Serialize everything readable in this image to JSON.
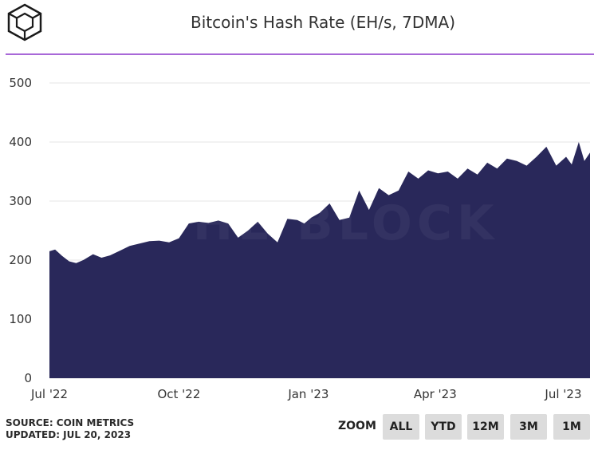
{
  "title": "Bitcoin's Hash Rate (EH/s, 7DMA)",
  "watermark": "THE BLOCK",
  "source": {
    "line1": "SOURCE: COIN METRICS",
    "line2": "UPDATED: JUL 20, 2023"
  },
  "zoom": {
    "label": "ZOOM",
    "buttons": [
      "ALL",
      "YTD",
      "12M",
      "3M",
      "1M"
    ]
  },
  "colors": {
    "area": "#29285a",
    "rule": "#a868d8",
    "gridline": "#e6e6e6",
    "button_bg": "#dcdcdc"
  },
  "chart_data": {
    "type": "area",
    "title": "Bitcoin's Hash Rate (EH/s, 7DMA)",
    "xlabel": "",
    "ylabel": "",
    "ylim": [
      0,
      500
    ],
    "yticks": [
      0,
      100,
      200,
      300,
      400,
      500
    ],
    "xticks": [
      "Jul '22",
      "Oct '22",
      "Jan '23",
      "Apr '23",
      "Jul '23"
    ],
    "x_range": [
      "2022-07-01",
      "2023-07-20"
    ],
    "grid": true,
    "legend": "none",
    "series": [
      {
        "x": [
          "2022-07-01",
          "2022-07-05",
          "2022-07-10",
          "2022-07-15",
          "2022-07-20",
          "2022-07-25",
          "2022-08-01",
          "2022-08-07",
          "2022-08-13",
          "2022-08-20",
          "2022-08-27",
          "2022-09-03",
          "2022-09-10",
          "2022-09-17",
          "2022-09-24",
          "2022-10-01",
          "2022-10-08",
          "2022-10-15",
          "2022-10-22",
          "2022-10-29",
          "2022-11-05",
          "2022-11-12",
          "2022-11-19",
          "2022-11-26",
          "2022-12-03",
          "2022-12-10",
          "2022-12-17",
          "2022-12-24",
          "2022-12-29",
          "2023-01-03",
          "2023-01-09",
          "2023-01-16",
          "2023-01-23",
          "2023-01-30",
          "2023-02-06",
          "2023-02-13",
          "2023-02-20",
          "2023-02-27",
          "2023-03-06",
          "2023-03-13",
          "2023-03-20",
          "2023-03-27",
          "2023-04-03",
          "2023-04-10",
          "2023-04-17",
          "2023-04-24",
          "2023-05-01",
          "2023-05-08",
          "2023-05-15",
          "2023-05-22",
          "2023-05-29",
          "2023-06-05",
          "2023-06-12",
          "2023-06-19",
          "2023-06-26",
          "2023-07-03",
          "2023-07-07",
          "2023-07-12",
          "2023-07-16",
          "2023-07-20"
        ],
        "values": [
          215,
          218,
          207,
          198,
          195,
          200,
          210,
          204,
          208,
          216,
          224,
          228,
          232,
          233,
          230,
          237,
          262,
          265,
          263,
          267,
          262,
          238,
          250,
          265,
          245,
          230,
          270,
          268,
          262,
          272,
          280,
          296,
          268,
          272,
          318,
          285,
          322,
          310,
          318,
          350,
          338,
          352,
          347,
          350,
          338,
          355,
          345,
          365,
          355,
          372,
          368,
          360,
          375,
          392,
          360,
          375,
          362,
          400,
          368,
          382
        ]
      }
    ]
  }
}
